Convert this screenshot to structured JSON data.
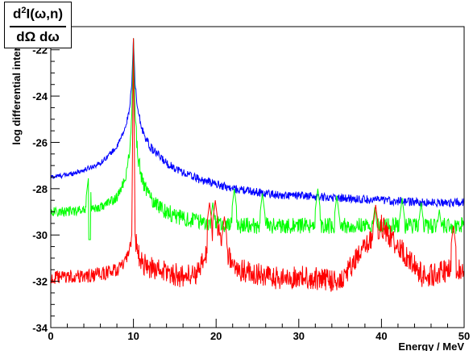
{
  "chart_data": {
    "type": "line",
    "title": "",
    "xlabel": "Energy / MeV",
    "ylabel": "log differential intensity",
    "xlim": [
      0,
      50
    ],
    "ylim": [
      -34,
      -21
    ],
    "x_ticks": [
      0,
      10,
      20,
      30,
      40,
      50
    ],
    "y_ticks": [
      -34,
      -32,
      -30,
      -28,
      -26,
      -24,
      -22
    ],
    "grid": false,
    "legend": "none",
    "quantity_box": {
      "numerator_base": "d",
      "numerator_exp": "2",
      "numerator_rest": "I(ω,n)",
      "denominator": "dΩ dω"
    },
    "series": [
      {
        "color": "#0000ff",
        "x": [
          0,
          2,
          4,
          6,
          8,
          9,
          9.5,
          9.8,
          10,
          10.2,
          10.5,
          11,
          12,
          14,
          16,
          18,
          20,
          22,
          24,
          26,
          28,
          30,
          35,
          40,
          45,
          50
        ],
        "y": [
          -27.5,
          -27.4,
          -27.2,
          -26.9,
          -26.2,
          -25.4,
          -24.6,
          -23.5,
          -21.5,
          -23.5,
          -24.6,
          -25.4,
          -26.2,
          -26.9,
          -27.3,
          -27.6,
          -27.8,
          -28.0,
          -28.1,
          -28.2,
          -28.3,
          -28.3,
          -28.4,
          -28.5,
          -28.6,
          -28.6
        ],
        "noise": 0.18,
        "peaks": [
          [
            4.6,
            -27.6
          ]
        ]
      },
      {
        "color": "#00ff00",
        "x": [
          0,
          2,
          4,
          6,
          8,
          9,
          9.5,
          9.8,
          10,
          10.2,
          10.5,
          11,
          12,
          14,
          16,
          18,
          20,
          22,
          24,
          26,
          28,
          30,
          35,
          40,
          45,
          50
        ],
        "y": [
          -29.0,
          -29.0,
          -28.9,
          -28.8,
          -28.4,
          -27.6,
          -26.5,
          -24.8,
          -21.5,
          -24.8,
          -26.5,
          -27.6,
          -28.4,
          -29.0,
          -29.3,
          -29.4,
          -29.5,
          -29.6,
          -29.6,
          -29.6,
          -29.6,
          -29.6,
          -29.6,
          -29.6,
          -29.6,
          -29.6
        ],
        "noise": 0.35,
        "peaks": [
          [
            4.6,
            -27.4
          ],
          [
            19.6,
            -28.6
          ],
          [
            22.2,
            -28.0
          ],
          [
            25.6,
            -28.2
          ],
          [
            32.3,
            -28.0
          ],
          [
            34.6,
            -28.3
          ],
          [
            39.2,
            -28.8
          ],
          [
            42.5,
            -28.4
          ],
          [
            44.8,
            -28.6
          ],
          [
            47.0,
            -28.9
          ]
        ],
        "dips": [
          [
            4.7,
            -30.2
          ]
        ]
      },
      {
        "color": "#ff0000",
        "x": [
          0,
          2,
          4,
          6,
          8,
          9,
          9.5,
          9.8,
          10,
          10.2,
          10.5,
          11,
          12,
          14,
          16,
          18,
          20,
          22,
          24,
          26,
          28,
          30,
          35,
          40,
          45,
          50
        ],
        "y": [
          -31.9,
          -31.8,
          -31.8,
          -31.7,
          -31.5,
          -31.2,
          -30.8,
          -30.0,
          -21.5,
          -30.0,
          -30.8,
          -31.2,
          -31.4,
          -31.6,
          -31.8,
          -31.6,
          -29.5,
          -31.4,
          -31.6,
          -31.8,
          -31.9,
          -31.8,
          -32.0,
          -29.6,
          -31.8,
          -31.4
        ],
        "noise": 0.5,
        "peaks": [
          [
            19.2,
            -28.6
          ],
          [
            19.9,
            -28.5
          ],
          [
            21.0,
            -29.2
          ],
          [
            39.3,
            -28.7
          ],
          [
            48.7,
            -29.6
          ]
        ]
      }
    ]
  }
}
